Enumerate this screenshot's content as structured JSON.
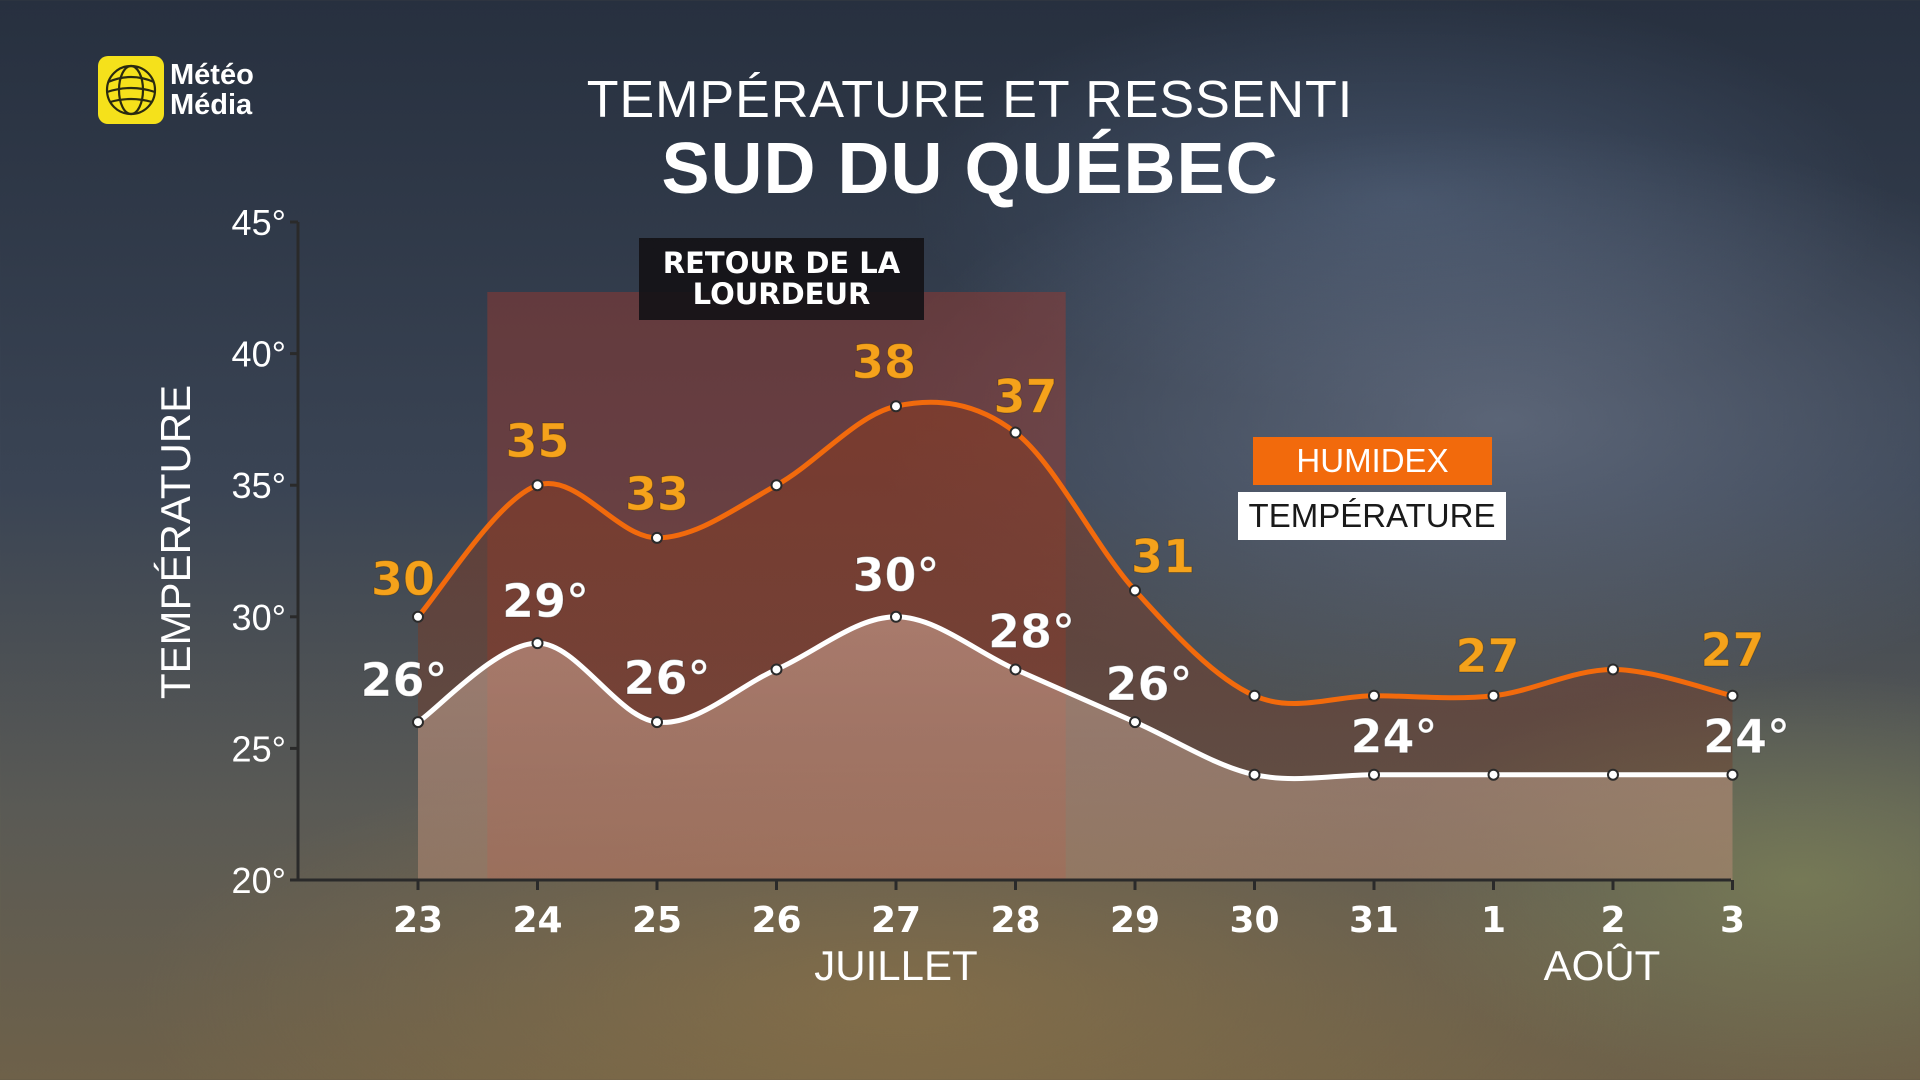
{
  "logo": {
    "line1": "Météo",
    "line2": "Média"
  },
  "header": {
    "title": "TEMPÉRATURE ET RESSENTI",
    "subtitle": "SUD DU QUÉBEC"
  },
  "annotation": {
    "line1": "RETOUR DE LA",
    "line2": "LOURDEUR"
  },
  "legend": {
    "humidex": "HUMIDEX",
    "temperature": "TEMPÉRATURE"
  },
  "months": {
    "july": "JUILLET",
    "august": "AOÛT"
  },
  "colors": {
    "humidex": "#f26a0c",
    "humidex_label": "#f5a21b",
    "temperature": "#ffffff",
    "highlight": "#a83a2c"
  },
  "chart_data": {
    "type": "line",
    "categories": [
      "23",
      "24",
      "25",
      "26",
      "27",
      "28",
      "29",
      "30",
      "31",
      "1",
      "2",
      "3"
    ],
    "ylabel": "TEMPÉRATURE",
    "ylim": [
      20,
      45
    ],
    "y_ticks": [
      "20°",
      "25°",
      "30°",
      "35°",
      "40°",
      "45°"
    ],
    "y_tick_values": [
      20,
      25,
      30,
      35,
      40,
      45
    ],
    "grid": false,
    "legend_position": "right",
    "highlight_range": [
      "24",
      "28"
    ],
    "series": [
      {
        "name": "HUMIDEX",
        "values": [
          30,
          35,
          33,
          35,
          38,
          37,
          31,
          27,
          27,
          27,
          28,
          27
        ],
        "labels": [
          "30",
          "35",
          "33",
          null,
          "38",
          "37",
          "31",
          null,
          null,
          "27",
          null,
          "27"
        ]
      },
      {
        "name": "TEMPÉRATURE",
        "values": [
          26,
          29,
          26,
          28,
          30,
          28,
          26,
          24,
          24,
          24,
          24,
          24
        ],
        "labels": [
          "26°",
          "29°",
          "26°",
          null,
          "30°",
          "28°",
          "26°",
          null,
          "24°",
          null,
          null,
          "24°"
        ]
      }
    ]
  }
}
